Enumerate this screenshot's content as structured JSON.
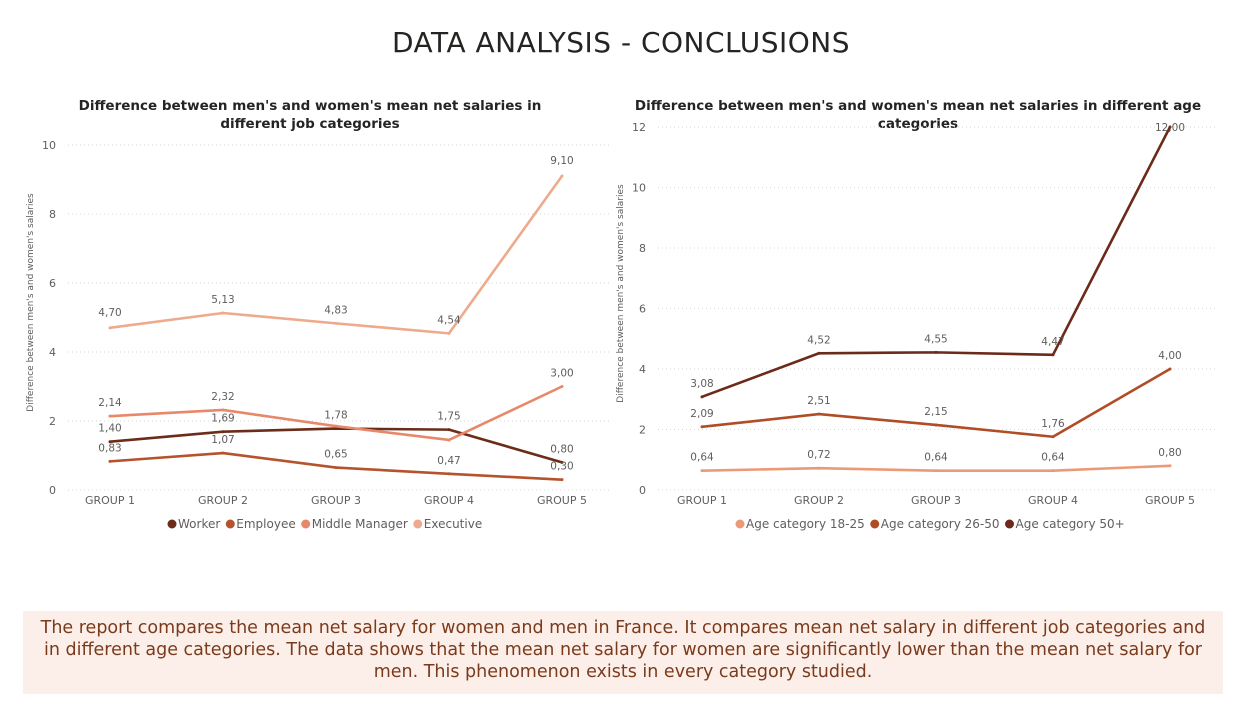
{
  "page": {
    "title": "DATA ANALYSIS - CONCLUSIONS",
    "summary": "The report compares the mean net salary for women and men in France.  It compares mean net salary in different job categories and in different age categories. The data shows that the mean net salary for women are significantly lower than the mean net salary for men. This phenomenon exists in every category studied."
  },
  "chart_data": [
    {
      "type": "line",
      "title": "Difference between men's and women's mean net salaries in different job categories",
      "xlabel": "",
      "ylabel": "Difference between men's and women's salaries",
      "categories": [
        "GROUP 1",
        "GROUP 2",
        "GROUP 3",
        "GROUP 4",
        "GROUP 5"
      ],
      "ylim": [
        0,
        10
      ],
      "yticks": [
        "0",
        "2",
        "4",
        "6",
        "8",
        "10"
      ],
      "grid": true,
      "legend_position": "bottom",
      "series": [
        {
          "name": "Worker",
          "color": "#6b2d1a",
          "values": [
            1.4,
            1.69,
            1.78,
            1.75,
            0.8
          ],
          "labels": [
            "1,40",
            "1,69",
            "1,78",
            "1,75",
            "0,80"
          ]
        },
        {
          "name": "Employee",
          "color": "#b5532c",
          "values": [
            0.83,
            1.07,
            0.65,
            0.47,
            0.3
          ],
          "labels": [
            "0,83",
            "1,07",
            "0,65",
            "0,47",
            "0,30"
          ]
        },
        {
          "name": "Middle Manager",
          "color": "#e8886a",
          "values": [
            2.14,
            2.32,
            1.85,
            1.45,
            3.0
          ],
          "labels": [
            "2,14",
            "2,32",
            "",
            "",
            "3,00"
          ]
        },
        {
          "name": "Executive",
          "color": "#eeaa8c",
          "values": [
            4.7,
            5.13,
            4.83,
            4.54,
            9.1
          ],
          "labels": [
            "4,70",
            "5,13",
            "4,83",
            "4,54",
            "9,10"
          ]
        }
      ]
    },
    {
      "type": "line",
      "title": "Difference between men's and women's mean net salaries in different age categories",
      "xlabel": "",
      "ylabel": "Difference between men's and women's salaries",
      "categories": [
        "GROUP 1",
        "GROUP 2",
        "GROUP 3",
        "GROUP 4",
        "GROUP 5"
      ],
      "ylim": [
        0,
        12
      ],
      "yticks": [
        "0",
        "2",
        "4",
        "6",
        "8",
        "10",
        "12"
      ],
      "grid": true,
      "legend_position": "bottom",
      "series": [
        {
          "name": "Age category 18-25",
          "color": "#eb9a78",
          "values": [
            0.64,
            0.72,
            0.64,
            0.64,
            0.8
          ],
          "labels": [
            "0,64",
            "0,72",
            "0,64",
            "0,64",
            "0,80"
          ]
        },
        {
          "name": "Age category 26-50",
          "color": "#b04c26",
          "values": [
            2.09,
            2.51,
            2.15,
            1.76,
            4.0
          ],
          "labels": [
            "2,09",
            "2,51",
            "2,15",
            "1,76",
            "4,00"
          ]
        },
        {
          "name": "Age category 50+",
          "color": "#6b2a1a",
          "values": [
            3.08,
            4.52,
            4.55,
            4.47,
            12.0
          ],
          "labels": [
            "3,08",
            "4,52",
            "4,55",
            "4,47",
            "12,00"
          ]
        }
      ]
    }
  ]
}
